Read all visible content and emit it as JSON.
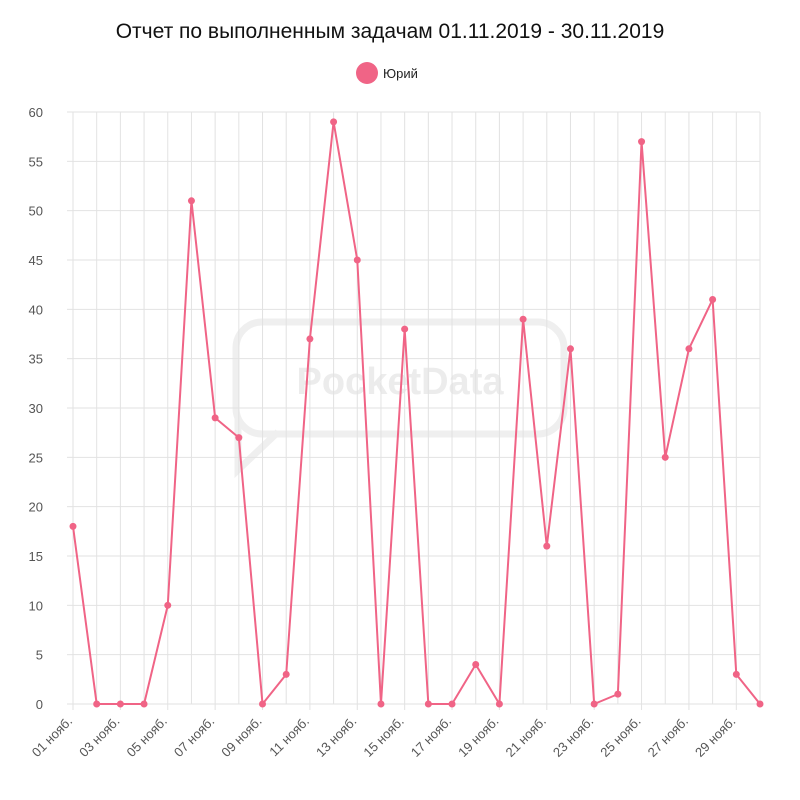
{
  "chart_data": {
    "type": "line",
    "title": "Отчет по выполненным задачам 01.11.2019 - 30.11.2019",
    "xlabel": "",
    "ylabel": "",
    "ylim": [
      0,
      60
    ],
    "yticks": [
      0,
      5,
      10,
      15,
      20,
      25,
      30,
      35,
      40,
      45,
      50,
      55,
      60
    ],
    "categories": [
      "01 нояб.",
      "02 нояб.",
      "03 нояб.",
      "04 нояб.",
      "05 нояб.",
      "06 нояб.",
      "07 нояб.",
      "08 нояб.",
      "09 нояб.",
      "10 нояб.",
      "11 нояб.",
      "12 нояб.",
      "13 нояб.",
      "14 нояб.",
      "15 нояб.",
      "16 нояб.",
      "17 нояб.",
      "18 нояб.",
      "19 нояб.",
      "20 нояб.",
      "21 нояб.",
      "22 нояб.",
      "23 нояб.",
      "24 нояб.",
      "25 нояб.",
      "26 нояб.",
      "27 нояб.",
      "28 нояб.",
      "29 нояб.",
      "30 нояб."
    ],
    "x_tick_labels": [
      "01 нояб.",
      "03 нояб.",
      "05 нояб.",
      "07 нояб.",
      "09 нояб.",
      "11 нояб.",
      "13 нояб.",
      "15 нояб.",
      "17 нояб.",
      "19 нояб.",
      "21 нояб.",
      "23 нояб.",
      "25 нояб.",
      "27 нояб.",
      "29 нояб."
    ],
    "series": [
      {
        "name": "Юрий",
        "color": "#f06486",
        "values": [
          18,
          0,
          0,
          0,
          10,
          51,
          29,
          27,
          0,
          3,
          37,
          59,
          45,
          0,
          38,
          0,
          0,
          4,
          0,
          39,
          16,
          36,
          0,
          1,
          57,
          25,
          36,
          41,
          3,
          0
        ]
      }
    ],
    "grid": true,
    "legend_position": "top-center"
  },
  "watermark": {
    "text": "PocketData"
  }
}
